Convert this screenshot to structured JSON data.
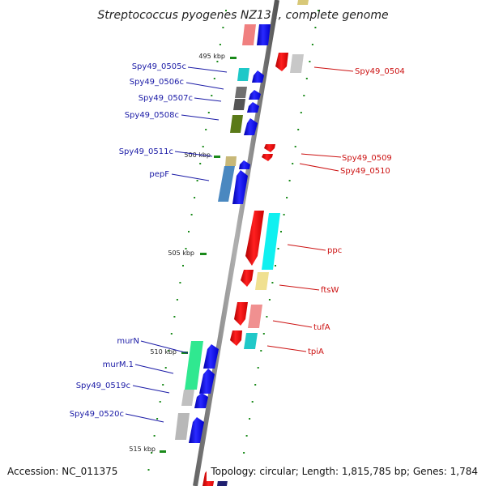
{
  "title": "Streptococcus pyogenes NZ131, complete genome",
  "footer": {
    "accession": "Accession: NC_011375",
    "topology": "Topology: circular; Length: 1,815,785 bp; Genes: 1,784"
  },
  "kbp_labels": [
    "495 kbp",
    "500 kbp",
    "505 kbp",
    "510 kbp",
    "515 kbp"
  ],
  "left_labels": [
    "Spy49_0505c",
    "Spy49_0506c",
    "Spy49_0507c",
    "Spy49_0508c",
    "Spy49_0511c",
    "pepF",
    "murN",
    "murM.1",
    "Spy49_0519c",
    "Spy49_0520c"
  ],
  "right_labels": [
    "Spy49_0504",
    "Spy49_0509",
    "Spy49_0510",
    "ppc",
    "ftsW",
    "tufA",
    "tpiA"
  ],
  "colors": {
    "backbone": "#888888",
    "minus_strand": "#0000ee",
    "plus_strand": "#ee0000",
    "tick": "#1a8a1a",
    "left_label": "#1a1aa6",
    "right_label": "#cc1111"
  }
}
